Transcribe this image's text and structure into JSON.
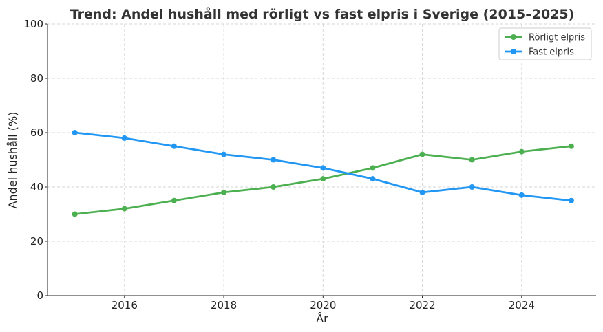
{
  "chart_data": {
    "type": "line",
    "title": "Trend: Andel hushåll med rörligt vs fast elpris i Sverige (2015–2025)",
    "xlabel": "År",
    "ylabel": "Andel hushåll (%)",
    "x": [
      2015,
      2016,
      2017,
      2018,
      2019,
      2020,
      2021,
      2022,
      2023,
      2024,
      2025
    ],
    "xlim": [
      2014.45,
      2025.5
    ],
    "ylim": [
      0,
      100
    ],
    "xticks": [
      2016,
      2018,
      2020,
      2022,
      2024
    ],
    "yticks": [
      0,
      20,
      40,
      60,
      80,
      100
    ],
    "grid": true,
    "legend_position": "top-right",
    "series": [
      {
        "name": "Rörligt elpris",
        "color": "#4caf50",
        "values": [
          30,
          32,
          35,
          38,
          40,
          43,
          47,
          52,
          50,
          53,
          55
        ]
      },
      {
        "name": "Fast elpris",
        "color": "#2196f3",
        "values": [
          60,
          58,
          55,
          52,
          50,
          47,
          43,
          38,
          40,
          37,
          35
        ]
      }
    ]
  }
}
